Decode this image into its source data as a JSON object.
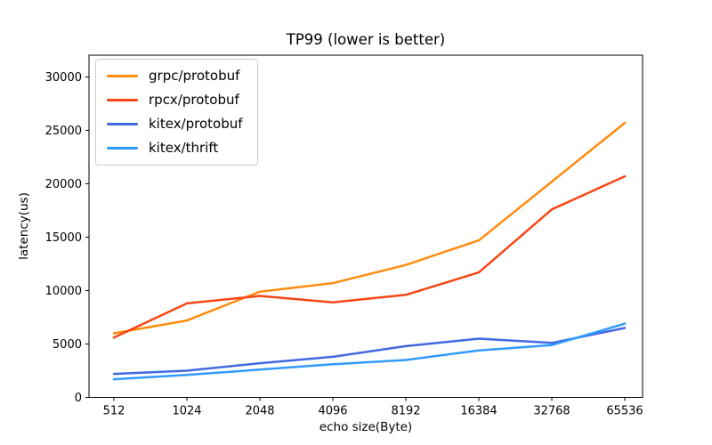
{
  "figure": {
    "title": "TP99 (lower is better)",
    "xlabel": "echo size(Byte)",
    "ylabel": "latency(us)"
  },
  "chart_data": {
    "type": "line",
    "title": "TP99 (lower is better)",
    "xlabel": "echo size(Byte)",
    "ylabel": "latency(us)",
    "categories": [
      "512",
      "1024",
      "2048",
      "4096",
      "8192",
      "16384",
      "32768",
      "65536"
    ],
    "y_ticks": [
      0,
      5000,
      10000,
      15000,
      20000,
      25000,
      30000
    ],
    "ylim": [
      0,
      32000
    ],
    "grid": false,
    "legend_position": "upper-left",
    "series": [
      {
        "name": "grpc/protobuf",
        "color": "#ff8c0e",
        "values": [
          6000,
          7200,
          9900,
          10700,
          12400,
          14700,
          20200,
          25700
        ]
      },
      {
        "name": "rpcx/protobuf",
        "color": "#f74615",
        "values": [
          5600,
          8800,
          9500,
          8900,
          9600,
          11700,
          17600,
          20700
        ]
      },
      {
        "name": "kitex/protobuf",
        "color": "#4169e1",
        "values": [
          2200,
          2500,
          3200,
          3800,
          4800,
          5500,
          5100,
          6500
        ]
      },
      {
        "name": "kitex/thrift",
        "color": "#2f9bff",
        "values": [
          1700,
          2100,
          2600,
          3100,
          3500,
          4400,
          4900,
          6900
        ]
      }
    ]
  }
}
